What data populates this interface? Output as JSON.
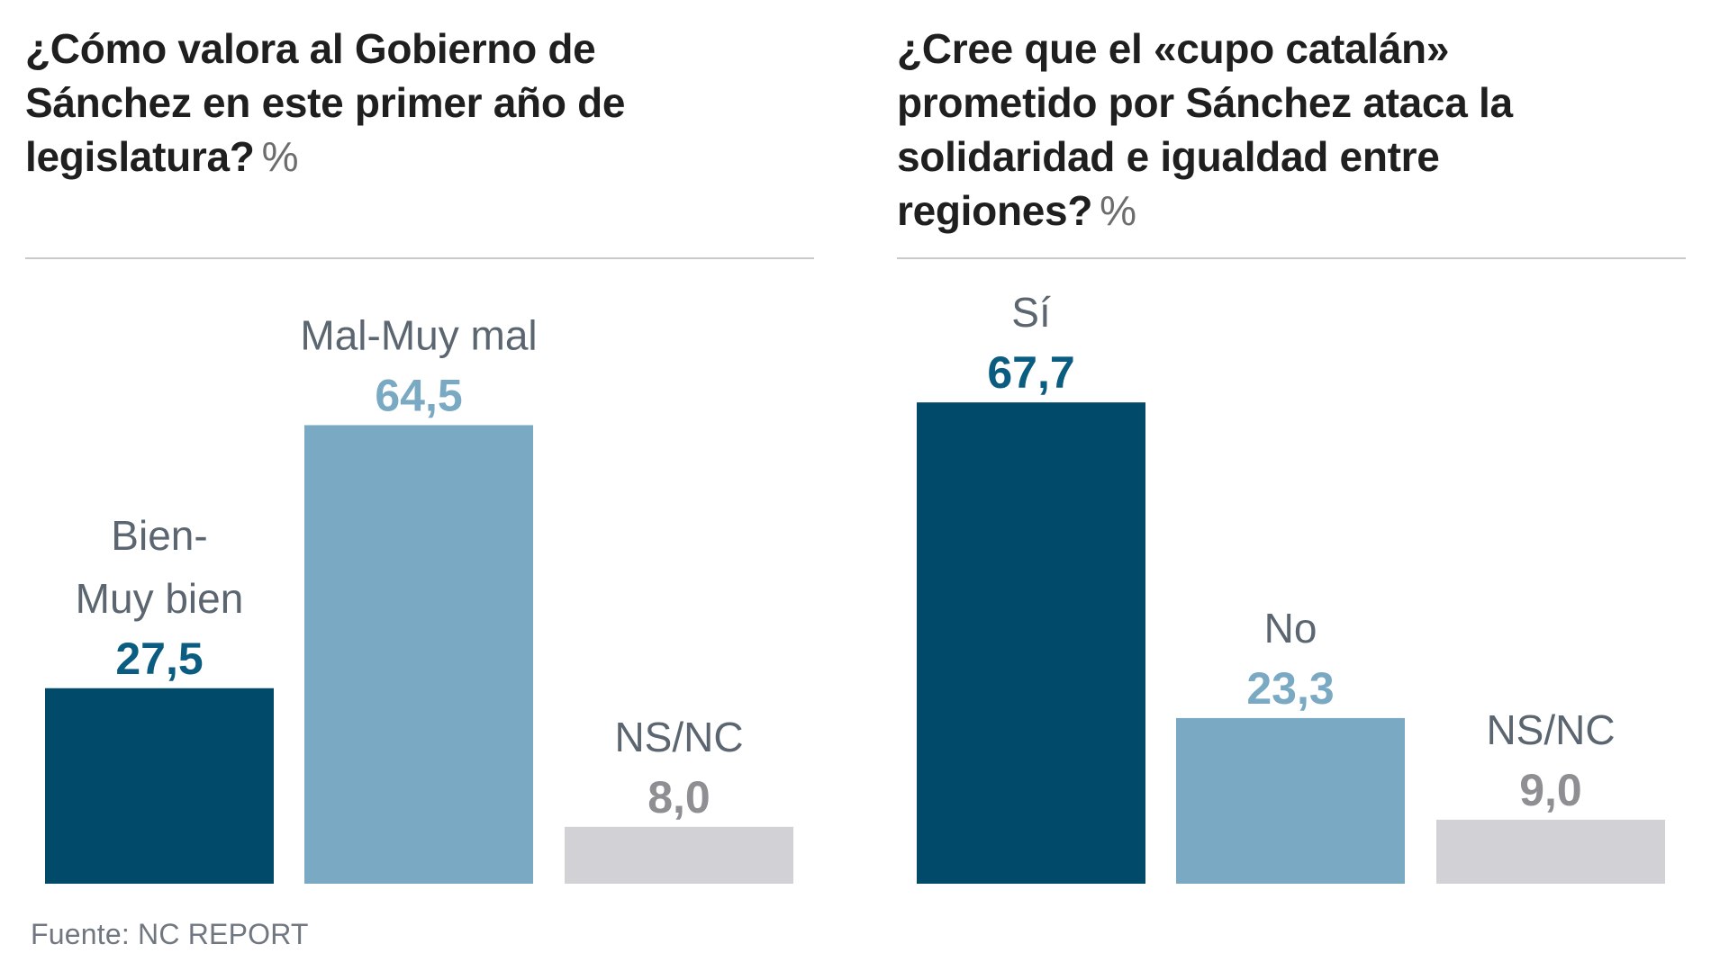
{
  "source": "Fuente: NC REPORT",
  "chart_data": [
    {
      "type": "bar",
      "title": "¿Cómo valora al Gobierno de Sánchez en este primer año de legislatura?",
      "unit": "%",
      "categories": [
        "Bien-Muy bien",
        "Mal-Muy mal",
        "NS/NC"
      ],
      "label_lines": [
        [
          "Bien-",
          "Muy bien"
        ],
        [
          "Mal-Muy mal"
        ],
        [
          "NS/NC"
        ]
      ],
      "values": [
        27.5,
        64.5,
        8.0
      ],
      "value_labels": [
        "27,5",
        "64,5",
        "8,0"
      ],
      "colors": [
        "#024a69",
        "#7aaac3",
        "#d2d2d6"
      ],
      "value_colors": [
        "#0a5c80",
        "#7aaac3",
        "#8f8f93"
      ],
      "label_color": "#5b6670",
      "ylim": [
        0,
        100
      ],
      "legend": "none",
      "grid": false
    },
    {
      "type": "bar",
      "title": "¿Cree que el «cupo catalán» prometido por Sánchez ataca la solidaridad e igualdad entre regiones?",
      "unit": "%",
      "categories": [
        "Sí",
        "No",
        "NS/NC"
      ],
      "label_lines": [
        [
          "Sí"
        ],
        [
          "No"
        ],
        [
          "NS/NC"
        ]
      ],
      "values": [
        67.7,
        23.3,
        9.0
      ],
      "value_labels": [
        "67,7",
        "23,3",
        "9,0"
      ],
      "colors": [
        "#024a69",
        "#7aaac3",
        "#d2d2d6"
      ],
      "value_colors": [
        "#0a5c80",
        "#7aaac3",
        "#8f8f93"
      ],
      "label_color": "#5b6670",
      "ylim": [
        0,
        100
      ],
      "legend": "none",
      "grid": false
    }
  ]
}
